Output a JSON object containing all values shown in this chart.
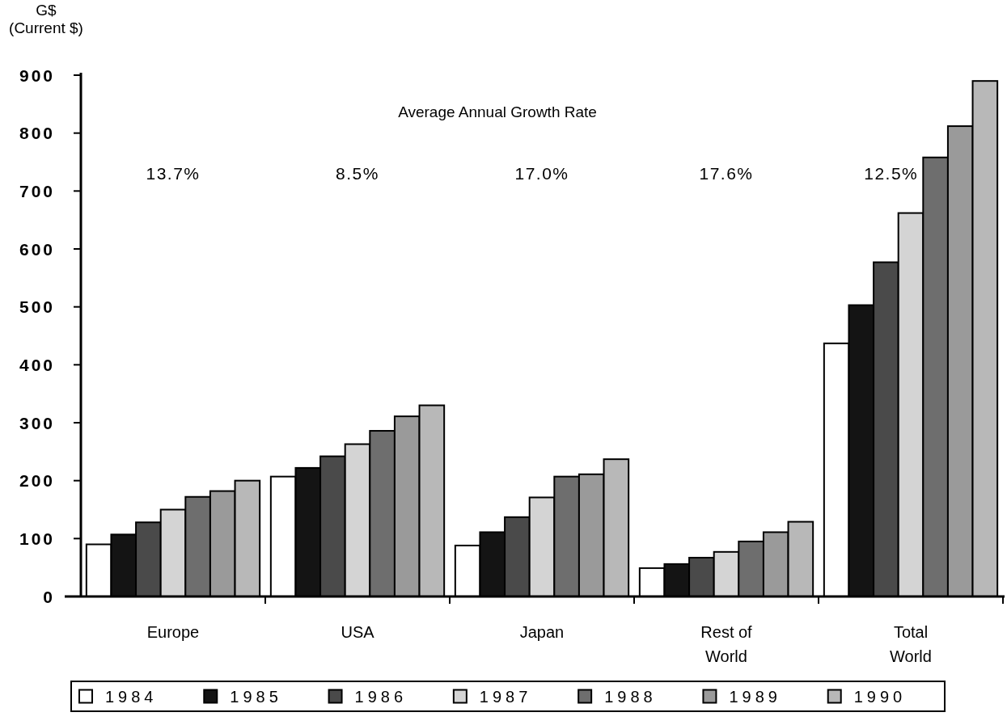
{
  "chart_data": {
    "type": "bar",
    "title": "Average Annual Growth Rate",
    "ylabel": "G$ (Current $)",
    "categories": [
      "Europe",
      "USA",
      "Japan",
      "Rest of World",
      "Total World"
    ],
    "series": [
      {
        "name": "1984",
        "color": "#ffffff",
        "values": [
          90,
          207,
          88,
          49,
          437
        ]
      },
      {
        "name": "1985",
        "color": "#141414",
        "values": [
          107,
          222,
          111,
          56,
          503
        ]
      },
      {
        "name": "1986",
        "color": "#4a4a4a",
        "values": [
          128,
          242,
          137,
          67,
          577
        ]
      },
      {
        "name": "1987",
        "color": "#d4d4d4",
        "values": [
          150,
          263,
          171,
          77,
          662
        ]
      },
      {
        "name": "1988",
        "color": "#6e6e6e",
        "values": [
          172,
          286,
          207,
          95,
          758
        ]
      },
      {
        "name": "1989",
        "color": "#9a9a9a",
        "values": [
          182,
          311,
          211,
          111,
          812
        ]
      },
      {
        "name": "1990",
        "color": "#b8b8b8",
        "values": [
          200,
          330,
          237,
          129,
          890
        ]
      }
    ],
    "ylim": [
      0,
      900
    ],
    "yticks": [
      0,
      100,
      200,
      300,
      400,
      500,
      600,
      700,
      800,
      900
    ],
    "annotations": [
      "13.7%",
      "8.5%",
      "17.0%",
      "17.6%",
      "12.5%"
    ],
    "legend": "bottom"
  }
}
